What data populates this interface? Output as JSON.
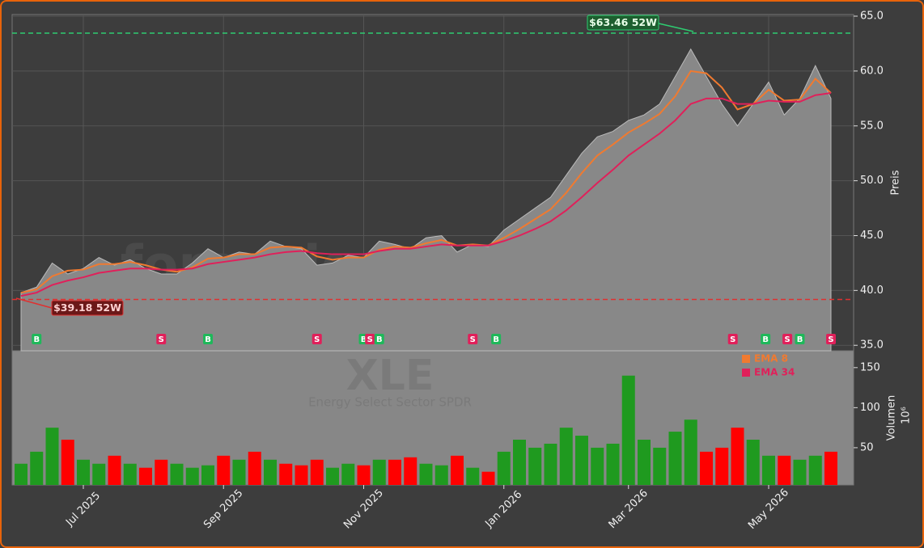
{
  "chart_data": {
    "type": "area",
    "watermark": "forexsignale.trade",
    "symbol": "XLE",
    "name": "Energy Select Sector SPDR",
    "ylabel": "Preis",
    "categories": [
      null,
      null,
      null,
      null,
      "Jul 2025",
      null,
      null,
      null,
      null,
      null,
      null,
      null,
      null,
      "Sep 2025",
      null,
      null,
      null,
      null,
      null,
      null,
      null,
      null,
      "Nov 2025",
      null,
      null,
      null,
      null,
      null,
      null,
      null,
      null,
      "Jan 2026",
      null,
      null,
      null,
      null,
      null,
      null,
      null,
      "Mar 2026",
      null,
      null,
      null,
      null,
      null,
      null,
      null,
      null,
      "May 2026",
      null,
      null,
      null,
      null
    ],
    "values": [
      39.8,
      40.3,
      42.5,
      41.5,
      42.0,
      43.0,
      42.3,
      42.8,
      42.0,
      41.5,
      41.5,
      42.5,
      43.8,
      43.0,
      43.5,
      43.3,
      44.5,
      44.0,
      43.8,
      42.3,
      42.5,
      43.2,
      43.0,
      44.5,
      44.2,
      43.8,
      44.8,
      45.0,
      43.5,
      44.2,
      44.0,
      45.5,
      46.5,
      47.5,
      48.5,
      50.5,
      52.5,
      54.0,
      54.5,
      55.5,
      56.0,
      57.0,
      59.5,
      62.0,
      59.5,
      57.0,
      55.0,
      57.0,
      59.0,
      56.0,
      57.5,
      60.5,
      57.5
    ],
    "color": "#888888",
    "series": [
      {
        "name": "EMA 8",
        "color": "#f07a30",
        "values": [
          39.8,
          40.1,
          41.3,
          41.8,
          41.9,
          42.4,
          42.4,
          42.6,
          42.3,
          41.9,
          41.7,
          42.1,
          42.9,
          43.0,
          43.3,
          43.3,
          43.9,
          44.0,
          43.9,
          43.1,
          42.8,
          43.0,
          43.0,
          43.7,
          44.0,
          43.9,
          44.3,
          44.6,
          44.1,
          44.2,
          44.1,
          44.8,
          45.6,
          46.5,
          47.4,
          48.9,
          50.7,
          52.3,
          53.3,
          54.4,
          55.2,
          56.1,
          57.7,
          60.0,
          59.8,
          58.5,
          56.5,
          57.0,
          58.3,
          57.3,
          57.4,
          59.3,
          58.0
        ]
      },
      {
        "name": "EMA 34",
        "color": "#e0205a",
        "values": [
          39.5,
          39.8,
          40.5,
          40.9,
          41.2,
          41.6,
          41.8,
          42.0,
          42.0,
          41.9,
          41.9,
          42.0,
          42.4,
          42.6,
          42.8,
          43.0,
          43.3,
          43.5,
          43.6,
          43.4,
          43.3,
          43.3,
          43.3,
          43.6,
          43.8,
          43.8,
          44.0,
          44.2,
          44.1,
          44.1,
          44.1,
          44.5,
          45.0,
          45.6,
          46.3,
          47.3,
          48.5,
          49.8,
          51.0,
          52.3,
          53.3,
          54.3,
          55.5,
          57.0,
          57.5,
          57.5,
          57.0,
          57.0,
          57.3,
          57.2,
          57.2,
          57.8,
          58.0
        ]
      }
    ],
    "ylim": [
      34.5,
      65.15
    ],
    "yticks": [
      {
        "value": 35,
        "label": "35.0"
      },
      {
        "value": 40,
        "label": "40.0"
      },
      {
        "value": 45,
        "label": "45.0"
      },
      {
        "value": 50,
        "label": "50.0"
      },
      {
        "value": 55,
        "label": "55.0"
      },
      {
        "value": 60,
        "label": "60.0"
      },
      {
        "value": 65,
        "label": "65.0"
      }
    ],
    "grid": true,
    "annotations": [
      {
        "text": "$63.46 52W",
        "value": 63.46,
        "color": "#2ecc71"
      },
      {
        "text": "$39.18 52W",
        "value": 39.18,
        "color": "#e03030"
      }
    ],
    "signals": [
      {
        "index": 1,
        "label": "B"
      },
      {
        "index": 9,
        "label": "S"
      },
      {
        "index": 12,
        "label": "B"
      },
      {
        "index": 19,
        "label": "S"
      },
      {
        "index": 22,
        "label": "B"
      },
      {
        "index": 22.4,
        "label": "S"
      },
      {
        "index": 23,
        "label": "B"
      },
      {
        "index": 29,
        "label": "S"
      },
      {
        "index": 30.5,
        "label": "B"
      },
      {
        "index": 45.7,
        "label": "S"
      },
      {
        "index": 47.8,
        "label": "B"
      },
      {
        "index": 49.2,
        "label": "S"
      },
      {
        "index": 50,
        "label": "B"
      },
      {
        "index": 52,
        "label": "S"
      }
    ],
    "volume": {
      "type": "bar",
      "ylabel": "Volumen",
      "scale_label": "10⁶",
      "up_color": "#1f9a1f",
      "down_color": "#ff0000",
      "values": [
        30,
        45,
        75,
        60,
        35,
        30,
        40,
        30,
        25,
        35,
        30,
        25,
        28,
        40,
        35,
        45,
        35,
        30,
        28,
        35,
        25,
        30,
        28,
        35,
        35,
        38,
        30,
        28,
        40,
        25,
        20,
        45,
        60,
        50,
        55,
        75,
        65,
        50,
        55,
        140,
        60,
        50,
        70,
        85,
        45,
        50,
        75,
        60,
        40,
        40,
        35,
        40,
        45
      ],
      "ylim": [
        3.5,
        171
      ],
      "yticks": [
        50,
        100,
        150
      ]
    }
  }
}
